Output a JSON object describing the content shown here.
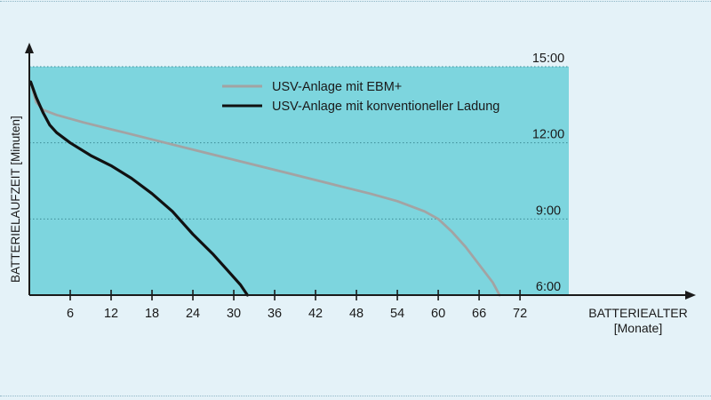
{
  "chart_data": {
    "type": "line",
    "title": "",
    "ylabel": "BATTERIELAUFZEIT [Minuten]",
    "xlabel_line1": "BATTERIEALTER",
    "xlabel_line2": "[Monate]",
    "xlim": [
      0,
      72
    ],
    "ylim": [
      6,
      15
    ],
    "x_ticks": [
      6,
      12,
      18,
      24,
      30,
      36,
      42,
      48,
      54,
      60,
      66,
      72
    ],
    "x_tick_labels": [
      "6",
      "12",
      "18",
      "24",
      "30",
      "36",
      "42",
      "48",
      "54",
      "60",
      "66",
      "72"
    ],
    "y_ticks": [
      6,
      9,
      12,
      15
    ],
    "y_tick_labels": [
      "6:00",
      "9:00",
      "12:00",
      "15:00"
    ],
    "grid": "horizontal dotted",
    "legend_position": "top-center",
    "colors": {
      "plot_background": "#7dd5de",
      "page_background": "#e4f2f8",
      "axis": "#1a1a1a",
      "gridline": "#3d8c96"
    },
    "series": [
      {
        "name": "USV-Anlage mit EBM+",
        "color": "#a3a3a3",
        "x": [
          0.2,
          1,
          2,
          4,
          8,
          14,
          20,
          26,
          32,
          38,
          44,
          50,
          54,
          58,
          60,
          62,
          64,
          66,
          68,
          69
        ],
        "y": [
          14.4,
          13.6,
          13.3,
          13.1,
          12.8,
          12.4,
          12.0,
          11.6,
          11.2,
          10.8,
          10.4,
          10.0,
          9.7,
          9.3,
          9.0,
          8.5,
          7.9,
          7.2,
          6.5,
          6.0
        ]
      },
      {
        "name": "USV-Anlage mit konventioneller Ladung",
        "color": "#111111",
        "x": [
          0.2,
          1,
          2,
          3,
          4,
          6,
          9,
          12,
          15,
          18,
          21,
          24,
          27,
          29,
          31,
          32
        ],
        "y": [
          14.4,
          13.8,
          13.2,
          12.7,
          12.4,
          12.0,
          11.5,
          11.1,
          10.6,
          10.0,
          9.3,
          8.4,
          7.6,
          7.0,
          6.4,
          6.0
        ]
      }
    ]
  }
}
